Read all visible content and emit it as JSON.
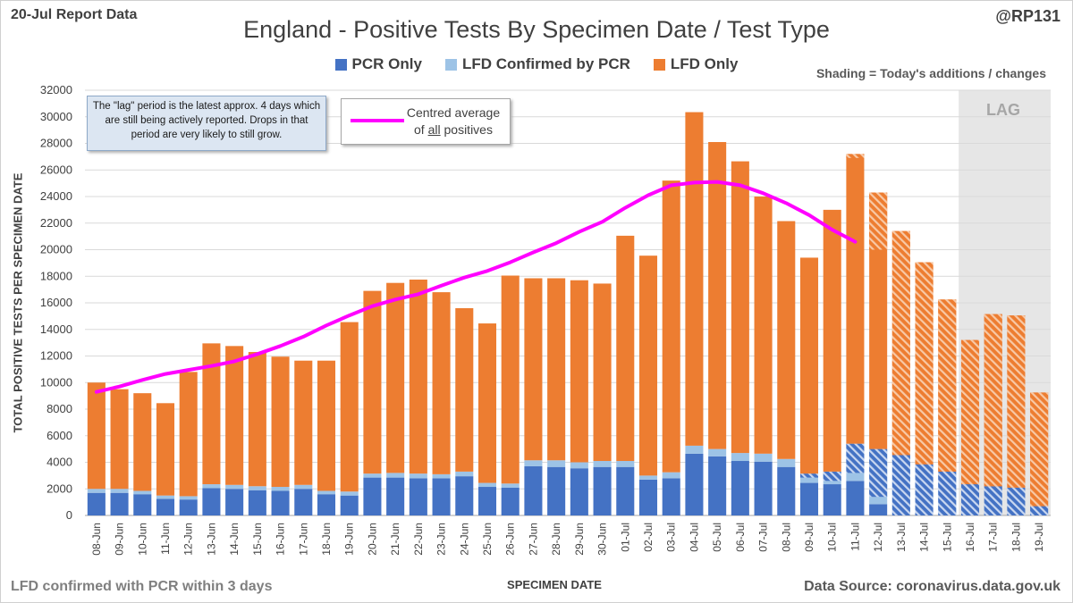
{
  "header": {
    "report_label": "20-Jul Report Data",
    "handle": "@RP131",
    "shading_note": "Shading = Today's additions / changes"
  },
  "annotations": {
    "lag_box_text": "The \"lag\" period is the latest approx. 4 days which are still being actively reported. Drops in that period are very likely to still grow.",
    "avg_label_before": "Centred average of",
    "avg_label_underlined": "all",
    "avg_label_after": "positives",
    "lag_label": "LAG"
  },
  "footer": {
    "note": "LFD confirmed with PCR within 3 days",
    "source": "Data Source: coronavirus.data.gov.uk"
  },
  "colors": {
    "pcr": "#4472c4",
    "lfd_confirmed": "#9dc3e6",
    "lfd_only": "#ed7d31",
    "average": "#ff00ff",
    "lag_shade": "#e6e6e6",
    "grid": "#d9d9d9"
  },
  "chart_data": {
    "type": "bar",
    "stacked": true,
    "title": "England - Positive Tests By Specimen Date / Test Type",
    "xlabel": "SPECIMEN DATE",
    "ylabel": "TOTAL POSITIVE TESTS PER SPECIMEN DATE",
    "ylim": [
      0,
      32000
    ],
    "ytick_step": 2000,
    "categories": [
      "08-Jun",
      "09-Jun",
      "10-Jun",
      "11-Jun",
      "12-Jun",
      "13-Jun",
      "14-Jun",
      "15-Jun",
      "16-Jun",
      "17-Jun",
      "18-Jun",
      "19-Jun",
      "20-Jun",
      "21-Jun",
      "22-Jun",
      "23-Jun",
      "24-Jun",
      "25-Jun",
      "26-Jun",
      "27-Jun",
      "28-Jun",
      "29-Jun",
      "30-Jun",
      "01-Jul",
      "02-Jul",
      "03-Jul",
      "04-Jul",
      "05-Jul",
      "06-Jul",
      "07-Jul",
      "08-Jul",
      "09-Jul",
      "10-Jul",
      "11-Jul",
      "12-Jul",
      "13-Jul",
      "14-Jul",
      "15-Jul",
      "16-Jul",
      "17-Jul",
      "18-Jul",
      "19-Jul"
    ],
    "series": [
      {
        "name": "PCR Only",
        "values": [
          1700,
          1700,
          1600,
          1250,
          1200,
          2050,
          2000,
          1900,
          1850,
          2000,
          1600,
          1500,
          2850,
          2850,
          2800,
          2800,
          2950,
          2150,
          2100,
          3700,
          3650,
          3550,
          3650,
          3650,
          2700,
          2800,
          4650,
          4450,
          4100,
          4050,
          3650,
          2450,
          2350,
          2600,
          850,
          0,
          0,
          0,
          0,
          0,
          0,
          0
        ]
      },
      {
        "name": "LFD Confirmed by PCR",
        "values": [
          300,
          300,
          250,
          250,
          250,
          300,
          300,
          300,
          300,
          300,
          250,
          300,
          300,
          350,
          350,
          300,
          350,
          300,
          300,
          450,
          500,
          450,
          450,
          450,
          300,
          450,
          600,
          550,
          600,
          600,
          600,
          700,
          950,
          2800,
          4150,
          4550,
          3850,
          3300,
          2350,
          2200,
          2100,
          700
        ]
      },
      {
        "name": "LFD Only",
        "values": [
          8000,
          7500,
          7350,
          6950,
          9350,
          10600,
          10450,
          10100,
          9800,
          9350,
          9800,
          12750,
          13750,
          14300,
          14600,
          13700,
          12300,
          12000,
          15650,
          13700,
          13700,
          13700,
          13350,
          16950,
          16550,
          21950,
          25100,
          23100,
          21950,
          19350,
          17900,
          16250,
          19700,
          21800,
          19300,
          16850,
          15200,
          12950,
          10850,
          12950,
          12950,
          8550
        ]
      }
    ],
    "shaded_today": [
      {
        "LFD Confirmed by PCR": [
          0,
          0,
          0,
          0,
          0,
          0,
          0,
          0,
          0,
          0,
          0,
          0,
          0,
          0,
          0,
          0,
          0,
          0,
          0,
          0,
          0,
          0,
          0,
          0,
          0,
          0,
          0,
          0,
          0,
          0,
          0,
          300,
          700,
          2200,
          3600,
          4550,
          3850,
          3300,
          2350,
          2200,
          2100,
          700
        ],
        "LFD Only": [
          0,
          0,
          0,
          0,
          0,
          0,
          0,
          0,
          0,
          0,
          0,
          0,
          0,
          0,
          0,
          0,
          0,
          0,
          0,
          0,
          0,
          0,
          0,
          0,
          0,
          0,
          0,
          0,
          0,
          0,
          0,
          0,
          0,
          0,
          4300,
          16850,
          15200,
          12950,
          10850,
          12950,
          12950,
          8550
        ],
        "LFD Only_top": [
          0,
          0,
          0,
          0,
          0,
          0,
          0,
          0,
          0,
          0,
          0,
          0,
          0,
          0,
          0,
          0,
          0,
          0,
          0,
          0,
          0,
          0,
          0,
          0,
          0,
          0,
          0,
          0,
          0,
          0,
          0,
          0,
          0,
          300,
          0,
          0,
          0,
          0,
          0,
          0,
          0,
          0
        ]
      }
    ],
    "centred_average": {
      "name": "Centred average of all positives",
      "start_index": 0,
      "values": [
        9300,
        9700,
        10200,
        10650,
        10950,
        11250,
        11600,
        12150,
        12750,
        13450,
        14300,
        15050,
        15750,
        16250,
        16650,
        17300,
        17900,
        18400,
        19050,
        19800,
        20500,
        21350,
        22100,
        23150,
        24100,
        24850,
        25050,
        25100,
        24850,
        24250,
        23500,
        22600,
        21500,
        20600
      ]
    },
    "lag_start_index": 38,
    "legend": [
      "PCR Only",
      "LFD Confirmed by PCR",
      "LFD Only"
    ]
  }
}
